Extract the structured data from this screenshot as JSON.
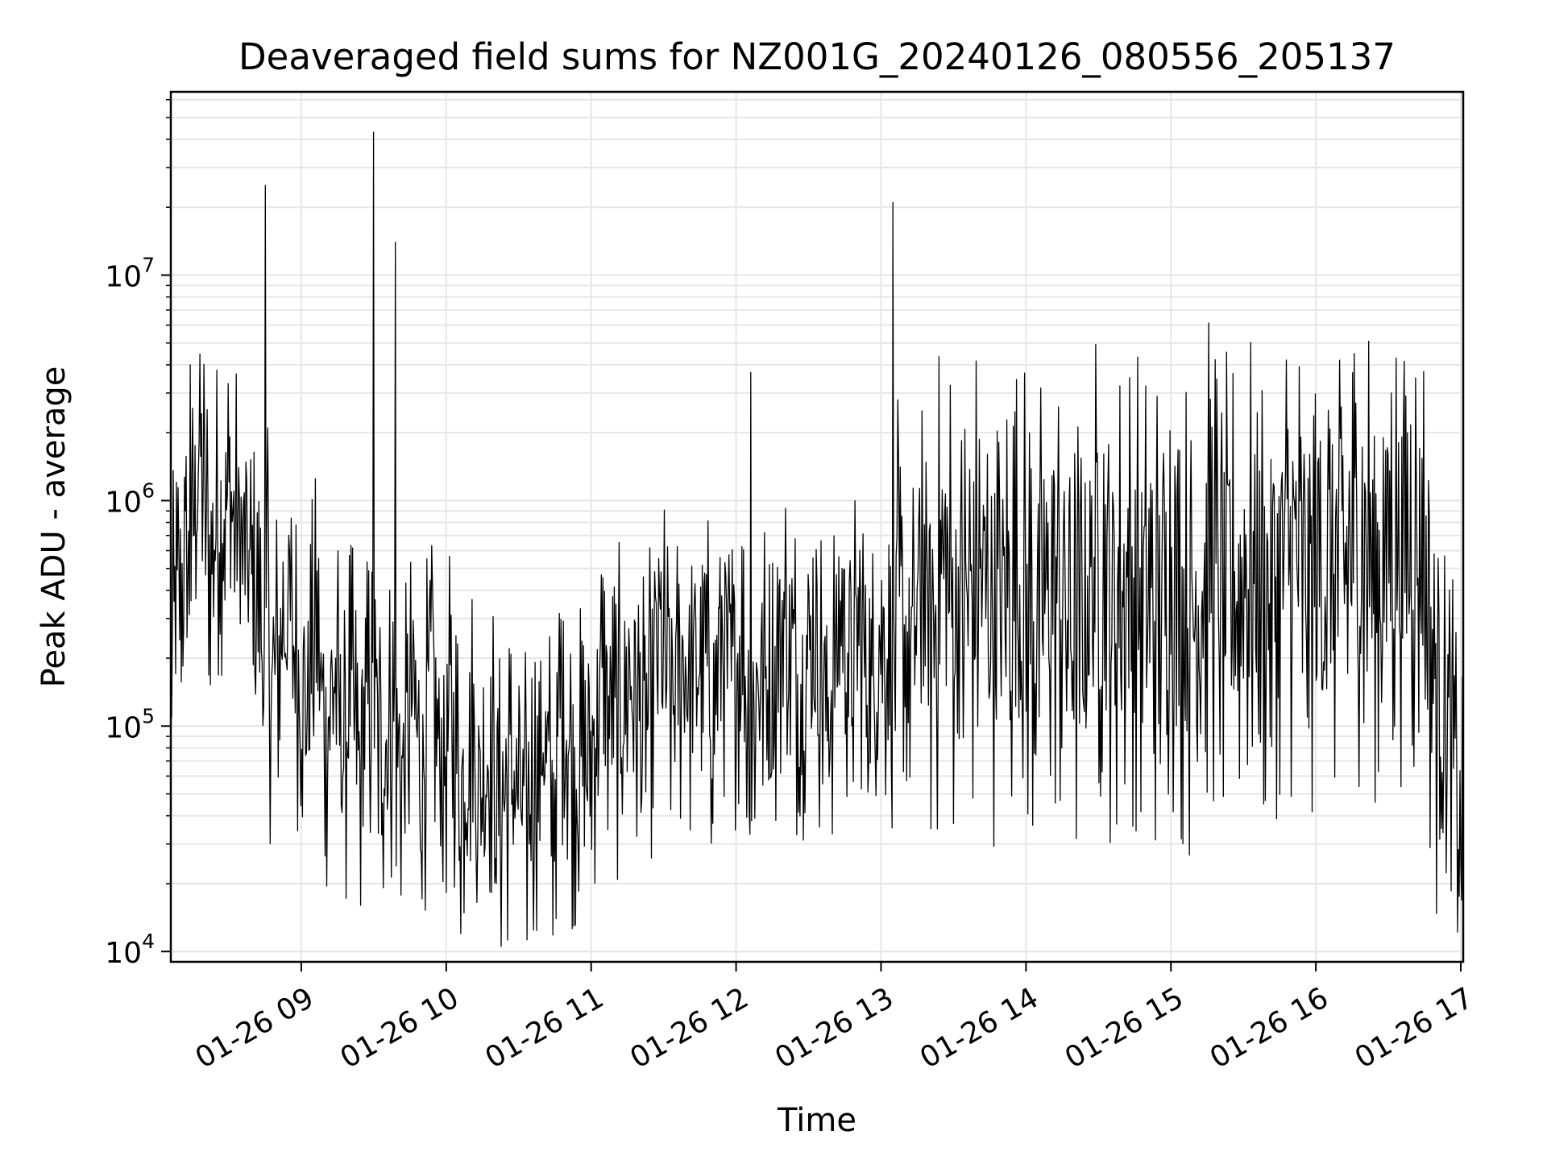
{
  "chart_data": {
    "type": "line",
    "title": "Deaveraged field sums for NZ001G_20240126_080556_205137",
    "xlabel": "Time",
    "ylabel": "Peak ADU - average",
    "yscale": "log",
    "ylim": [
      9000,
      65000000
    ],
    "xlim": [
      "2024-01-26 08:06",
      "2024-01-26 17:01"
    ],
    "x_ticks": [
      "01-26 09",
      "01-26 10",
      "01-26 11",
      "01-26 12",
      "01-26 13",
      "01-26 14",
      "01-26 15",
      "01-26 16",
      "01-26 17"
    ],
    "y_ticks": [
      {
        "base": "10",
        "exp": "4"
      },
      {
        "base": "10",
        "exp": "5"
      },
      {
        "base": "10",
        "exp": "6"
      },
      {
        "base": "10",
        "exp": "7"
      }
    ],
    "grid": true,
    "line_color": "#000000",
    "series": [
      {
        "times": [
          "08:06",
          "08:10",
          "08:14",
          "08:18",
          "08:20",
          "08:22",
          "08:26",
          "08:30",
          "08:34",
          "08:38",
          "08:42",
          "08:48",
          "08:54",
          "08:58",
          "09:02",
          "09:06",
          "09:10",
          "09:14",
          "09:18",
          "09:20",
          "09:24",
          "09:28",
          "09:34",
          "09:38",
          "09:42",
          "09:46",
          "09:50",
          "09:54",
          "09:58",
          "10:02",
          "10:06",
          "10:10",
          "10:14",
          "10:18",
          "10:22",
          "10:26",
          "10:30",
          "10:34",
          "10:40",
          "10:44",
          "10:48",
          "10:52",
          "10:58",
          "11:04",
          "11:10",
          "11:16",
          "11:22",
          "11:28",
          "11:34",
          "11:38",
          "11:42",
          "11:46",
          "11:50",
          "11:54",
          "11:58",
          "12:02",
          "12:06",
          "12:10",
          "12:14",
          "12:20",
          "12:26",
          "12:32",
          "12:38",
          "12:44",
          "12:48",
          "12:52",
          "12:56",
          "13:00",
          "13:04",
          "13:08",
          "13:12",
          "13:16",
          "13:20",
          "13:26",
          "13:32",
          "13:40",
          "13:48",
          "13:56",
          "14:04",
          "14:12",
          "14:20",
          "14:28",
          "14:36",
          "14:44",
          "14:52",
          "15:00",
          "15:08",
          "15:16",
          "15:24",
          "15:32",
          "15:40",
          "15:48",
          "15:56",
          "16:04",
          "16:12",
          "16:20",
          "16:28",
          "16:34",
          "16:38",
          "16:44",
          "16:48",
          "16:52",
          "16:56",
          "17:00"
        ],
        "values": [
          200000,
          450000,
          500000,
          2000000,
          1000000,
          600000,
          900000,
          1000000,
          700000,
          500000,
          300000,
          150000,
          350000,
          200000,
          120000,
          250000,
          90000,
          180000,
          70000,
          150000,
          60000,
          130000,
          80000,
          110000,
          60000,
          140000,
          55000,
          200000,
          60000,
          120000,
          50000,
          100000,
          45000,
          90000,
          40000,
          60000,
          50000,
          40000,
          100000,
          45000,
          150000,
          70000,
          60000,
          150000,
          100000,
          180000,
          80000,
          250000,
          120000,
          200000,
          150000,
          250000,
          120000,
          300000,
          150000,
          250000,
          80000,
          200000,
          120000,
          300000,
          150000,
          250000,
          120000,
          300000,
          180000,
          280000,
          120000,
          300000,
          150000,
          350000,
          200000,
          400000,
          250000,
          500000,
          300000,
          450000,
          350000,
          400000,
          300000,
          450000,
          250000,
          500000,
          350000,
          450000,
          300000,
          500000,
          280000,
          550000,
          350000,
          500000,
          400000,
          600000,
          450000,
          500000,
          550000,
          650000,
          500000,
          700000,
          600000,
          650000,
          250000,
          120000,
          100000,
          30000
        ],
        "spikes": [
          {
            "time": "08:14",
            "value": 4000000
          },
          {
            "time": "08:45",
            "value": 25000000
          },
          {
            "time": "08:46",
            "value": 2100000
          },
          {
            "time": "09:30",
            "value": 43000000
          },
          {
            "time": "09:39",
            "value": 14000000
          },
          {
            "time": "12:06",
            "value": 3700000
          },
          {
            "time": "13:05",
            "value": 21000000
          },
          {
            "time": "13:07",
            "value": 2800000
          },
          {
            "time": "13:17",
            "value": 2500000
          },
          {
            "time": "16:30",
            "value": 1600000
          }
        ]
      }
    ]
  }
}
